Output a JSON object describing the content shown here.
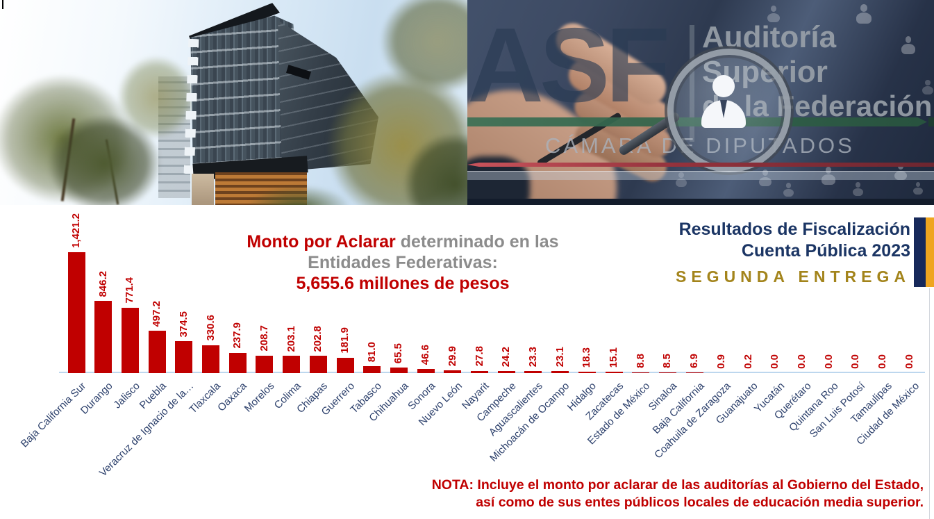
{
  "asf_logo": {
    "asf": "ASF",
    "line1": "Auditoría",
    "line2": "Superior",
    "line3": "de la Federación",
    "camara": "CÁMARA DE DIPUTADOS"
  },
  "banner": {
    "line1": "Resultados de Fiscalización",
    "line2": "Cuenta Pública 2023",
    "line3": "SEGUNDA ENTREGA"
  },
  "title": {
    "part1": "Monto por Aclarar",
    "part2": " determinado en las",
    "line2": "Entidades Federativas:",
    "line3": "5,655.6 millones de pesos"
  },
  "note": {
    "line1": "NOTA: Incluye el monto por aclarar de las auditorías al Gobierno del Estado,",
    "line2": "así como de sus entes públicos locales de educación media superior."
  },
  "chart_data": {
    "type": "bar",
    "title": "Monto por Aclarar determinado en las Entidades Federativas: 5,655.6 millones de pesos",
    "xlabel": "",
    "ylabel": "",
    "ylim": [
      0,
      1500
    ],
    "grid": false,
    "bar_color": "#C00000",
    "value_label_color": "#C00000",
    "category_label_color": "#2B3F6B",
    "axis_color": "#BDD7EE",
    "categories": [
      "Baja California Sur",
      "Durango",
      "Jalisco",
      "Puebla",
      "Veracruz de Ignacio de la…",
      "Tlaxcala",
      "Oaxaca",
      "Morelos",
      "Colima",
      "Chiapas",
      "Guerrero",
      "Tabasco",
      "Chihuahua",
      "Sonora",
      "Nuevo León",
      "Nayarit",
      "Campeche",
      "Aguascalientes",
      "Michoacán de Ocampo",
      "Hidalgo",
      "Zacatecas",
      "Estado de México",
      "Sinaloa",
      "Baja California",
      "Coahuila de Zaragoza",
      "Guanajuato",
      "Yucatán",
      "Querétaro",
      "Quintana Roo",
      "San Luis Potosí",
      "Tamaulipas",
      "Ciudad de México"
    ],
    "values": [
      1421.2,
      846.2,
      771.4,
      497.2,
      374.5,
      330.6,
      237.9,
      208.7,
      203.1,
      202.8,
      181.9,
      81.0,
      65.5,
      46.6,
      29.9,
      27.8,
      24.2,
      23.3,
      23.1,
      18.3,
      15.1,
      8.8,
      8.5,
      6.9,
      0.9,
      0.2,
      0.0,
      0.0,
      0.0,
      0.0,
      0.0,
      0.0
    ],
    "value_labels": [
      "1,421.2",
      "846.2",
      "771.4",
      "497.2",
      "374.5",
      "330.6",
      "237.9",
      "208.7",
      "203.1",
      "202.8",
      "181.9",
      "81.0",
      "65.5",
      "46.6",
      "29.9",
      "27.8",
      "24.2",
      "23.3",
      "23.1",
      "18.3",
      "15.1",
      "8.8",
      "8.5",
      "6.9",
      "0.9",
      "0.2",
      "0.0",
      "0.0",
      "0.0",
      "0.0",
      "0.0",
      "0.0"
    ]
  },
  "colors": {
    "banner_navy": "#1B3564",
    "banner_gold_text": "#A3841B",
    "banner_bar_navy": "#17295A",
    "banner_bar_gold": "#EFA51F",
    "accent_red": "#C00000",
    "title_gray": "#8C8C8C"
  }
}
